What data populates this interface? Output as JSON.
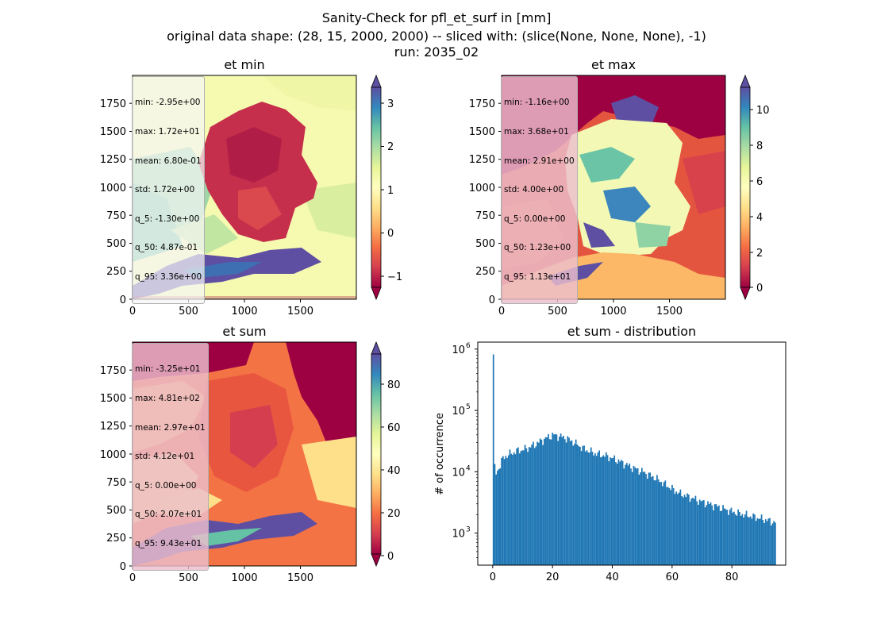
{
  "figure": {
    "suptitle_lines": [
      "Sanity-Check for pfl_et_surf in [mm]",
      "original data shape: (28, 15, 2000, 2000) -- sliced with: (slice(None, None, None), -1)",
      "run: 2035_02"
    ]
  },
  "panels": {
    "et_min": {
      "title": "et min",
      "stats": [
        "min: -2.95e+00",
        "max: 1.72e+01",
        "mean: 6.80e-01",
        "std: 1.72e+00",
        "q_5: -1.30e+00",
        "q_50: 4.87e-01",
        "q_95: 3.36e+00"
      ],
      "colorbar_ticks": [
        "3",
        "2",
        "1",
        "0",
        "−1"
      ]
    },
    "et_max": {
      "title": "et max",
      "stats": [
        "min: -1.16e+00",
        "max: 3.68e+01",
        "mean: 2.91e+00",
        "std: 4.00e+00",
        "q_5: 0.00e+00",
        "q_50: 1.23e+00",
        "q_95: 1.13e+01"
      ],
      "colorbar_ticks": [
        "10",
        "8",
        "6",
        "4",
        "2",
        "0"
      ]
    },
    "et_sum": {
      "title": "et sum",
      "stats": [
        "min: -3.25e+01",
        "max: 4.81e+02",
        "mean: 2.97e+01",
        "std: 4.12e+01",
        "q_5: 0.00e+00",
        "q_50: 2.07e+01",
        "q_95: 9.43e+01"
      ],
      "colorbar_ticks": [
        "80",
        "60",
        "40",
        "20",
        "0"
      ]
    },
    "hist": {
      "title": "et sum - distribution"
    }
  },
  "map_axes": {
    "x_ticks": [
      "0",
      "500",
      "1000",
      "1500"
    ],
    "y_ticks": [
      "1750",
      "1500",
      "1250",
      "1000",
      "750",
      "500",
      "250",
      "0"
    ]
  },
  "colors": {
    "hist_bar": "#1f77b4",
    "axis": "#000000"
  },
  "chart_data": [
    {
      "type": "heatmap",
      "title": "et min",
      "xlim": [
        0,
        2000
      ],
      "ylim": [
        0,
        2000
      ],
      "colorbar": {
        "min": -1.5,
        "max": 3.5,
        "ticks": [
          3,
          2,
          1,
          0,
          -1
        ],
        "cmap": "Spectral"
      }
    },
    {
      "type": "heatmap",
      "title": "et max",
      "xlim": [
        0,
        2000
      ],
      "ylim": [
        0,
        2000
      ],
      "colorbar": {
        "min": 0,
        "max": 11.5,
        "ticks": [
          10,
          8,
          6,
          4,
          2,
          0
        ],
        "cmap": "Spectral"
      }
    },
    {
      "type": "heatmap",
      "title": "et sum",
      "xlim": [
        0,
        2000
      ],
      "ylim": [
        0,
        2000
      ],
      "colorbar": {
        "min": 0,
        "max": 96,
        "ticks": [
          80,
          60,
          40,
          20,
          0
        ],
        "cmap": "Spectral"
      }
    },
    {
      "type": "bar",
      "title": "et sum - distribution",
      "xlabel": "",
      "ylabel": "# of occurrence",
      "yscale": "log",
      "xlim": [
        -5,
        98
      ],
      "ylim": [
        300,
        1300000
      ],
      "x_ticks": [
        0,
        20,
        40,
        60,
        80
      ],
      "y_ticks": [
        {
          "value": 1000,
          "label": "10",
          "exp": "3"
        },
        {
          "value": 10000,
          "label": "10",
          "exp": "4"
        },
        {
          "value": 100000,
          "label": "10",
          "exp": "5"
        },
        {
          "value": 1000000,
          "label": "10",
          "exp": "6"
        }
      ],
      "histogram_profile": [
        [
          0,
          820000
        ],
        [
          0.5,
          8000
        ],
        [
          1,
          9500
        ],
        [
          2,
          12000
        ],
        [
          3,
          16000
        ],
        [
          4,
          18000
        ],
        [
          6,
          20000
        ],
        [
          8,
          22000
        ],
        [
          10,
          23000
        ],
        [
          12,
          25000
        ],
        [
          14,
          28000
        ],
        [
          16,
          32000
        ],
        [
          18,
          36000
        ],
        [
          20,
          40000
        ],
        [
          22,
          38000
        ],
        [
          24,
          36000
        ],
        [
          26,
          32000
        ],
        [
          28,
          28000
        ],
        [
          30,
          24000
        ],
        [
          34,
          20000
        ],
        [
          38,
          18000
        ],
        [
          42,
          15000
        ],
        [
          46,
          12000
        ],
        [
          50,
          10000
        ],
        [
          54,
          8000
        ],
        [
          58,
          6000
        ],
        [
          62,
          4500
        ],
        [
          66,
          3800
        ],
        [
          70,
          3200
        ],
        [
          74,
          2800
        ],
        [
          78,
          2400
        ],
        [
          82,
          2100
        ],
        [
          86,
          1900
        ],
        [
          90,
          1700
        ],
        [
          94,
          1500
        ]
      ]
    }
  ]
}
